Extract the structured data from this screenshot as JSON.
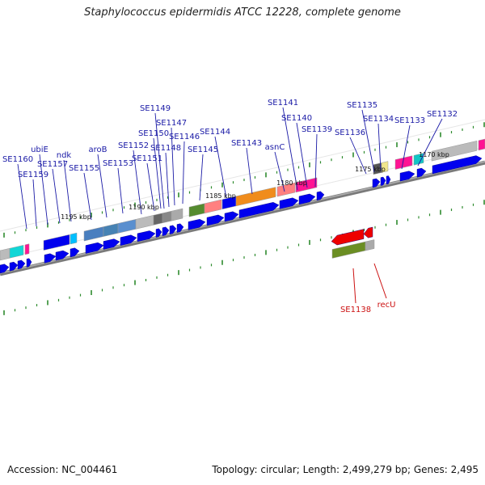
{
  "title": "Staphylococcus epidermidis ATCC 12228, complete genome",
  "footer": {
    "accession": "Accession: NC_004461",
    "stats": "Topology: circular; Length: 2,499,279 bp; Genes: 2,495"
  },
  "colors": {
    "gene_label": "#1a1aa6",
    "highlight_label": "#cc1111",
    "backbone": "#888888",
    "tick": "#2e8b2e",
    "arrow": "#0000ee"
  },
  "kbp_markers": [
    {
      "label": "1195 kbp"
    },
    {
      "label": "1190 kbp"
    },
    {
      "label": "1185 kbp"
    },
    {
      "label": "1180 kbp"
    },
    {
      "label": "1175 kbp"
    },
    {
      "label": "1170 kbp"
    }
  ],
  "gene_labels": [
    {
      "text": "SE1160"
    },
    {
      "text": "SE1159"
    },
    {
      "text": "ubiE"
    },
    {
      "text": "SE1157"
    },
    {
      "text": "ndk"
    },
    {
      "text": "SE1155"
    },
    {
      "text": "aroB"
    },
    {
      "text": "SE1153"
    },
    {
      "text": "SE1152"
    },
    {
      "text": "SE1151"
    },
    {
      "text": "SE1150"
    },
    {
      "text": "SE1149"
    },
    {
      "text": "SE1148"
    },
    {
      "text": "SE1147"
    },
    {
      "text": "SE1146"
    },
    {
      "text": "SE1145"
    },
    {
      "text": "SE1144"
    },
    {
      "text": "SE1143"
    },
    {
      "text": "asnC"
    },
    {
      "text": "SE1141"
    },
    {
      "text": "SE1140"
    },
    {
      "text": "SE1139"
    },
    {
      "text": "SE1136"
    },
    {
      "text": "SE1135"
    },
    {
      "text": "SE1134"
    },
    {
      "text": "SE1133"
    },
    {
      "text": "SE1132"
    }
  ],
  "highlight_labels": [
    {
      "text": "SE1138"
    },
    {
      "text": "recU"
    }
  ]
}
